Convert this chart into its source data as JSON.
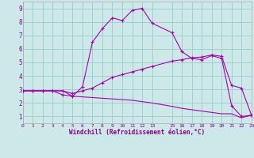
{
  "xlabel": "Windchill (Refroidissement éolien,°C)",
  "bg_color": "#cce8e8",
  "grid_color": "#99cccc",
  "line_color": "#aa00aa",
  "xlim": [
    0,
    23
  ],
  "ylim": [
    0.5,
    9.5
  ],
  "xticks": [
    0,
    1,
    2,
    3,
    4,
    5,
    6,
    7,
    8,
    9,
    10,
    11,
    12,
    13,
    15,
    16,
    17,
    18,
    19,
    20,
    21,
    22,
    23
  ],
  "yticks": [
    1,
    2,
    3,
    4,
    5,
    6,
    7,
    8,
    9
  ],
  "line1_x": [
    0,
    1,
    2,
    3,
    4,
    5,
    6,
    7,
    8,
    9,
    10,
    11,
    12,
    13,
    15,
    16,
    17,
    18,
    19,
    20,
    21,
    22,
    23
  ],
  "line1_y": [
    2.9,
    2.9,
    2.9,
    2.9,
    2.6,
    2.5,
    3.2,
    6.5,
    7.5,
    8.3,
    8.1,
    8.85,
    9.0,
    7.9,
    7.2,
    5.8,
    5.3,
    5.2,
    5.5,
    5.3,
    1.8,
    1.0,
    1.1
  ],
  "line2_x": [
    0,
    1,
    2,
    3,
    4,
    5,
    6,
    7,
    8,
    9,
    10,
    11,
    12,
    13,
    15,
    16,
    17,
    18,
    19,
    20,
    21,
    22,
    23
  ],
  "line2_y": [
    2.9,
    2.9,
    2.9,
    2.9,
    2.9,
    2.7,
    2.9,
    3.1,
    3.5,
    3.9,
    4.1,
    4.3,
    4.5,
    4.7,
    5.1,
    5.2,
    5.35,
    5.4,
    5.55,
    5.45,
    3.3,
    3.1,
    1.1
  ],
  "line3_x": [
    0,
    1,
    2,
    3,
    4,
    5,
    6,
    7,
    8,
    9,
    10,
    11,
    12,
    13,
    15,
    16,
    17,
    18,
    19,
    20,
    21,
    22,
    23
  ],
  "line3_y": [
    2.9,
    2.9,
    2.9,
    2.9,
    2.9,
    2.5,
    2.45,
    2.4,
    2.35,
    2.3,
    2.25,
    2.2,
    2.1,
    2.0,
    1.75,
    1.6,
    1.5,
    1.4,
    1.3,
    1.2,
    1.2,
    0.9,
    1.1
  ],
  "xlabel_color": "#880088",
  "tick_color": "#880088",
  "figsize": [
    3.2,
    2.0
  ],
  "dpi": 100
}
